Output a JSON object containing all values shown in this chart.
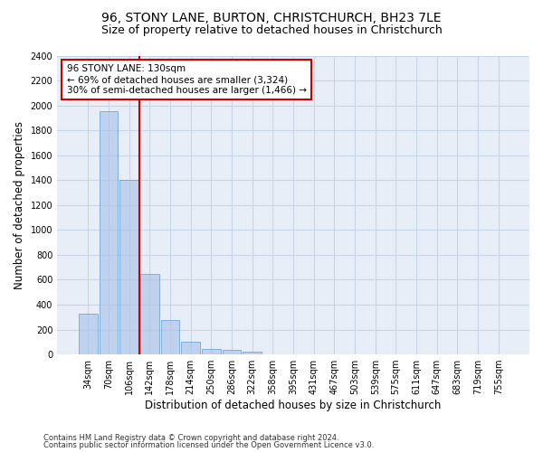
{
  "title_line1": "96, STONY LANE, BURTON, CHRISTCHURCH, BH23 7LE",
  "title_line2": "Size of property relative to detached houses in Christchurch",
  "xlabel": "Distribution of detached houses by size in Christchurch",
  "ylabel": "Number of detached properties",
  "footer_line1": "Contains HM Land Registry data © Crown copyright and database right 2024.",
  "footer_line2": "Contains public sector information licensed under the Open Government Licence v3.0.",
  "bin_labels": [
    "34sqm",
    "70sqm",
    "106sqm",
    "142sqm",
    "178sqm",
    "214sqm",
    "250sqm",
    "286sqm",
    "322sqm",
    "358sqm",
    "395sqm",
    "431sqm",
    "467sqm",
    "503sqm",
    "539sqm",
    "575sqm",
    "611sqm",
    "647sqm",
    "683sqm",
    "719sqm",
    "755sqm"
  ],
  "bar_values": [
    325,
    1950,
    1400,
    650,
    275,
    100,
    47,
    38,
    25,
    0,
    0,
    0,
    0,
    0,
    0,
    0,
    0,
    0,
    0,
    0,
    0
  ],
  "bar_color": "#aec6e8",
  "bar_edge_color": "#5b9bd5",
  "bar_alpha": 0.7,
  "vline_color": "#cc0000",
  "annotation_text": "96 STONY LANE: 130sqm\n← 69% of detached houses are smaller (3,324)\n30% of semi-detached houses are larger (1,466) →",
  "annotation_box_edgecolor": "#cc0000",
  "annotation_fontsize": 7.5,
  "ylim": [
    0,
    2400
  ],
  "yticks": [
    0,
    200,
    400,
    600,
    800,
    1000,
    1200,
    1400,
    1600,
    1800,
    2000,
    2200,
    2400
  ],
  "grid_color": "#c8d4e8",
  "background_color": "#e8eef8",
  "title1_fontsize": 10,
  "title2_fontsize": 9,
  "xlabel_fontsize": 8.5,
  "ylabel_fontsize": 8.5,
  "tick_fontsize": 7
}
